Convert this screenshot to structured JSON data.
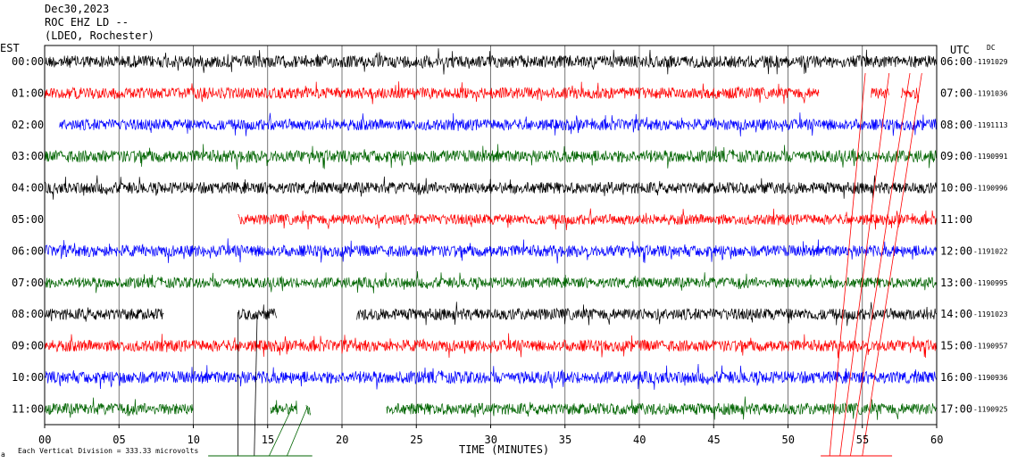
{
  "header": {
    "date": "Dec30,2023",
    "station": "ROC EHZ LD --",
    "location": "(LDEO, Rochester)"
  },
  "left_tz": "EST",
  "right_tz": "UTC",
  "dc_label": "DC",
  "footer_note": "Each Vertical Division = 333.33 microvolts",
  "colors": {
    "black": "#000000",
    "red": "#ff0000",
    "blue": "#0000ff",
    "green": "#006400"
  },
  "chart_data": {
    "type": "line",
    "title": "Dec30,2023 ROC EHZ LD -- (LDEO, Rochester)",
    "xlabel": "TIME (MINUTES)",
    "x_ticks": [
      "00",
      "05",
      "10",
      "15",
      "20",
      "25",
      "30",
      "35",
      "40",
      "45",
      "50",
      "55",
      "60"
    ],
    "xlim": [
      0,
      60
    ],
    "grid": true,
    "rows": [
      {
        "est": "00:00",
        "utc": "06:00",
        "dc": "1191029",
        "color": "black",
        "segments": [
          [
            0,
            60
          ]
        ],
        "amp": 0.35
      },
      {
        "est": "01:00",
        "utc": "07:00",
        "dc": "1191036",
        "color": "red",
        "segments": [
          [
            0,
            52.1
          ],
          [
            55.6,
            56.8
          ],
          [
            57.6,
            58.8
          ]
        ],
        "amp": 0.32
      },
      {
        "est": "02:00",
        "utc": "08:00",
        "dc": "1191113",
        "color": "blue",
        "segments": [
          [
            1,
            60
          ]
        ],
        "amp": 0.32
      },
      {
        "est": "03:00",
        "utc": "09:00",
        "dc": "1190991",
        "color": "green",
        "segments": [
          [
            0,
            60
          ]
        ],
        "amp": 0.35
      },
      {
        "est": "04:00",
        "utc": "10:00",
        "dc": "1190996",
        "color": "black",
        "segments": [
          [
            0,
            60
          ]
        ],
        "amp": 0.33
      },
      {
        "est": "05:00",
        "utc": "11:00",
        "dc": "",
        "color": "red",
        "segments": [
          [
            13,
            60
          ]
        ],
        "amp": 0.3
      },
      {
        "est": "06:00",
        "utc": "12:00",
        "dc": "1191022",
        "color": "blue",
        "segments": [
          [
            0,
            60
          ]
        ],
        "amp": 0.33
      },
      {
        "est": "07:00",
        "utc": "13:00",
        "dc": "1190995",
        "color": "green",
        "segments": [
          [
            0,
            60
          ]
        ],
        "amp": 0.3
      },
      {
        "est": "08:00",
        "utc": "14:00",
        "dc": "1191023",
        "color": "black",
        "segments": [
          [
            0,
            8
          ],
          [
            13,
            15.6
          ],
          [
            21,
            60
          ]
        ],
        "amp": 0.33
      },
      {
        "est": "09:00",
        "utc": "15:00",
        "dc": "1190957",
        "color": "red",
        "segments": [
          [
            0,
            60
          ]
        ],
        "amp": 0.33
      },
      {
        "est": "10:00",
        "utc": "16:00",
        "dc": "1190936",
        "color": "blue",
        "segments": [
          [
            0,
            60
          ]
        ],
        "amp": 0.35
      },
      {
        "est": "11:00",
        "utc": "17:00",
        "dc": "1190925",
        "color": "green",
        "segments": [
          [
            0,
            10
          ],
          [
            15.2,
            17
          ],
          [
            17.6,
            17.9
          ],
          [
            23,
            60
          ]
        ],
        "amp": 0.33
      }
    ]
  }
}
